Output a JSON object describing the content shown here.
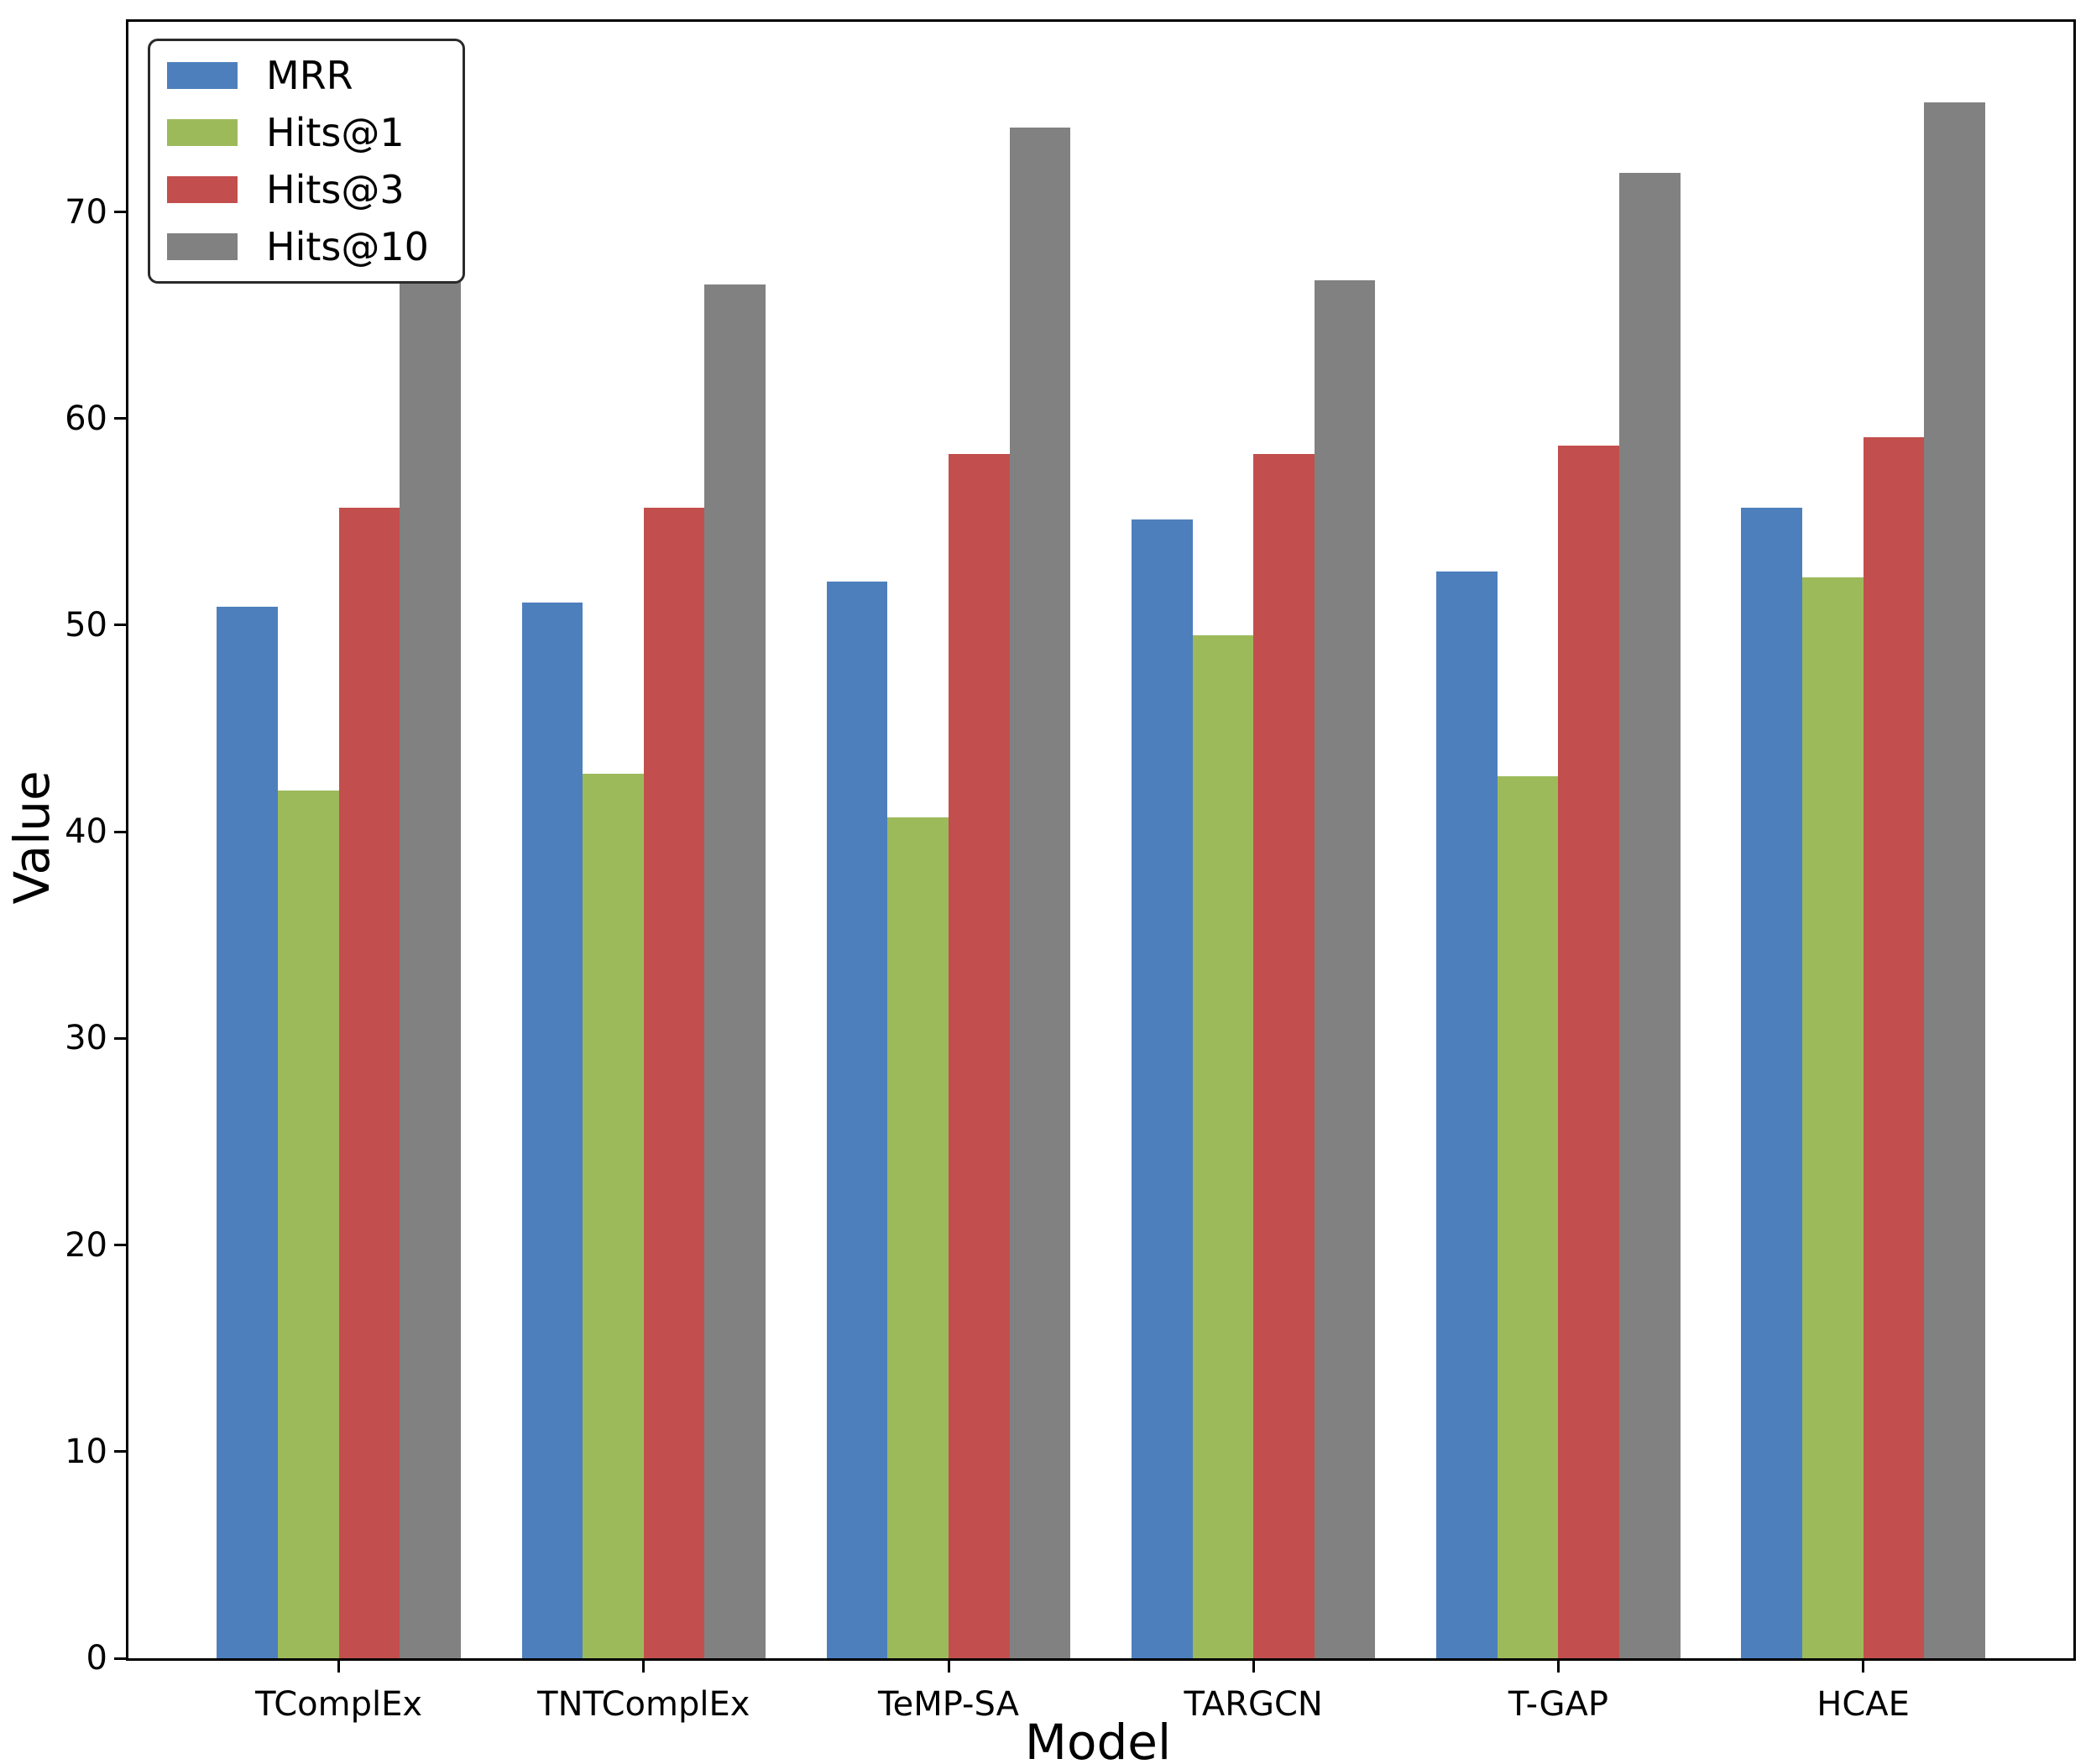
{
  "figure": {
    "background": "#ffffff"
  },
  "chart_data": {
    "type": "bar",
    "title": "",
    "xlabel": "Model",
    "ylabel": "Value",
    "categories": [
      "TComplEx",
      "TNTComplEx",
      "TeMP-SA",
      "TARGCN",
      "T-GAP",
      "HCAE"
    ],
    "series": [
      {
        "name": "MRR",
        "color": "#4d7fbd",
        "values": [
          50.9,
          51.1,
          52.1,
          55.1,
          52.6,
          55.7
        ]
      },
      {
        "name": "Hits@1",
        "color": "#9dba5b",
        "values": [
          42.0,
          42.8,
          40.7,
          49.5,
          42.7,
          52.3
        ]
      },
      {
        "name": "Hits@3",
        "color": "#c24f4d",
        "values": [
          55.7,
          55.7,
          58.3,
          58.3,
          58.7,
          59.1
        ]
      },
      {
        "name": "Hits@10",
        "color": "#818181",
        "values": [
          67.7,
          66.5,
          74.1,
          66.7,
          71.9,
          75.3
        ]
      }
    ],
    "yticks": [
      0,
      10,
      20,
      30,
      40,
      50,
      60,
      70
    ],
    "ylim": [
      0,
      79.2
    ],
    "grid": false,
    "legend_position": "upper left",
    "bar_width": 0.2
  }
}
